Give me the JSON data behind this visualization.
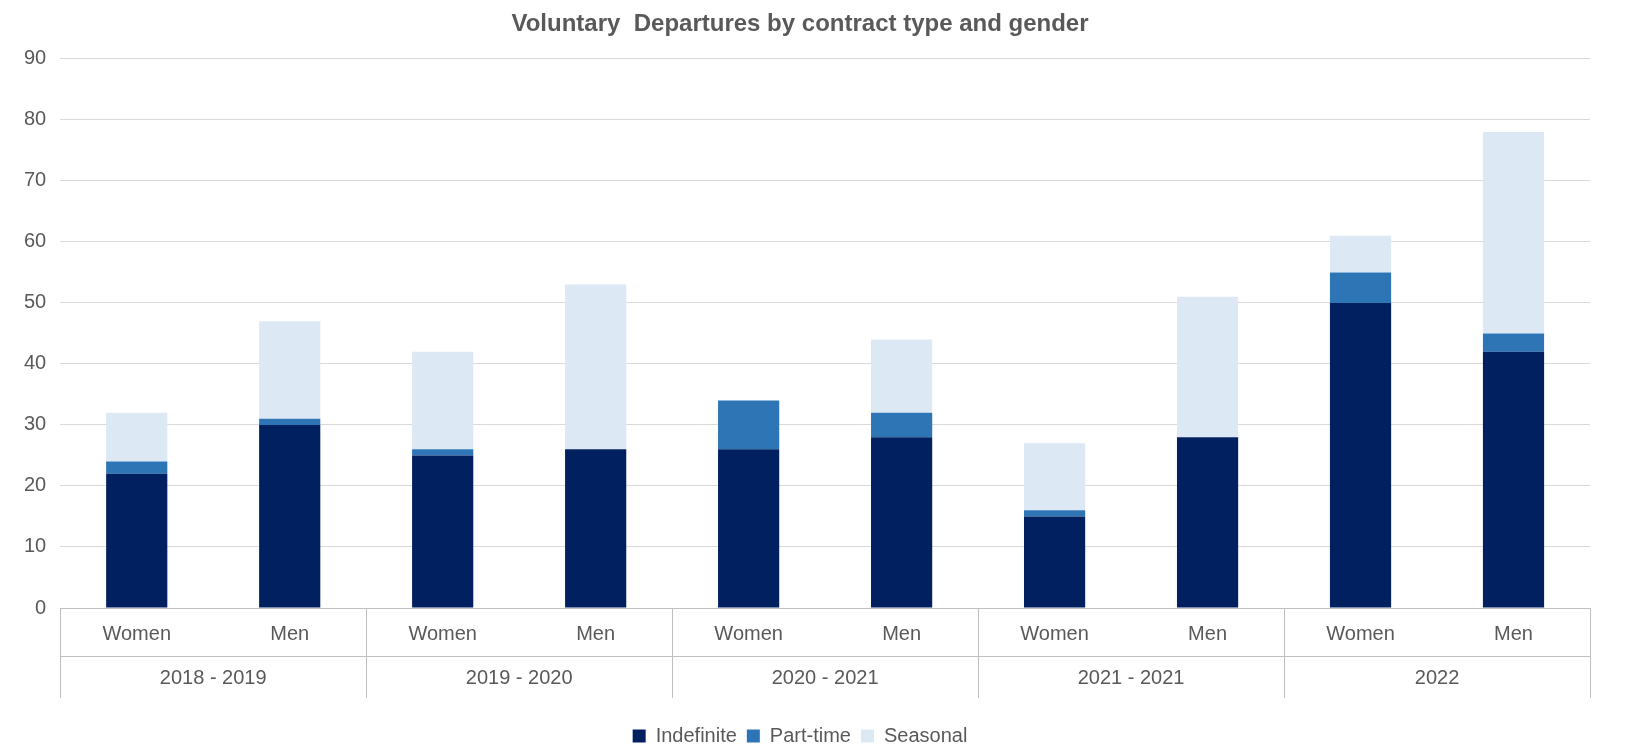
{
  "chart_data": {
    "type": "bar",
    "title": "Voluntary  Departures by contract type and gender",
    "stacked": true,
    "categories": [
      "Women",
      "Men",
      "Women",
      "Men",
      "Women",
      "Men",
      "Women",
      "Men",
      "Women",
      "Men"
    ],
    "series": [
      {
        "name": "Indefinite",
        "color": "#002060",
        "values": [
          22,
          30,
          25,
          26,
          26,
          28,
          15,
          28,
          50,
          42
        ]
      },
      {
        "name": "Part-time",
        "color": "#2e75b6",
        "values": [
          2,
          1,
          1,
          0,
          8,
          4,
          1,
          0,
          5,
          3
        ]
      },
      {
        "name": "Seasonal",
        "color": "#dde8f5",
        "values": [
          8,
          16,
          16,
          27,
          0,
          12,
          11,
          23,
          6,
          33
        ]
      }
    ],
    "ylim": [
      0,
      90
    ],
    "yticks": [
      0,
      10,
      20,
      30,
      40,
      50,
      60,
      70,
      80,
      90
    ],
    "grid": "y",
    "legend": "bottom",
    "annotations": [
      "2018 - 2019",
      "2019 - 2020",
      "2020 - 2021",
      "2021 - 2021",
      "2022"
    ]
  }
}
